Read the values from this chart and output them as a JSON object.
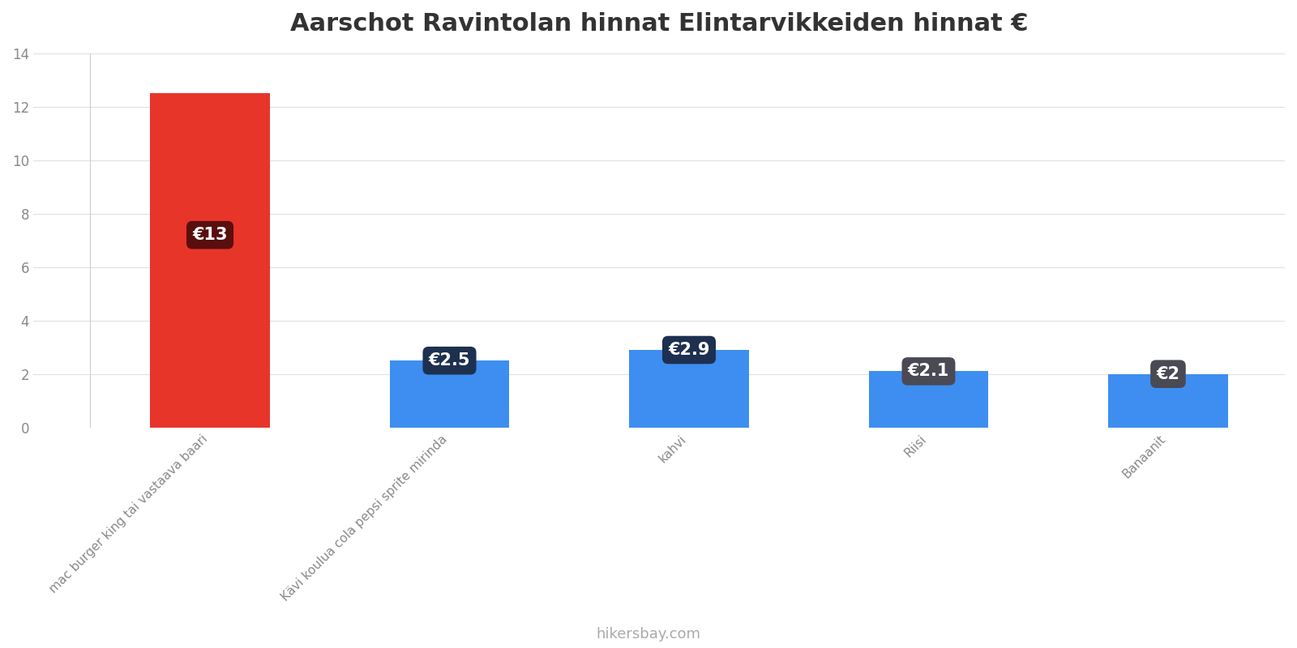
{
  "title": "Aarschot Ravintolan hinnat Elintarvikkeiden hinnat €",
  "categories": [
    "mac burger king tai vastaava baari",
    "Kävi koulua cola pepsi sprite mirinda",
    "kahvi",
    "Riisi",
    "Banaanit"
  ],
  "values": [
    12.5,
    2.5,
    2.9,
    2.1,
    2.0
  ],
  "bar_colors": [
    "#e8352a",
    "#3d8ef0",
    "#3d8ef0",
    "#3d8ef0",
    "#3d8ef0"
  ],
  "label_bg_colors": [
    "#5a0e0e",
    "#1e3050",
    "#1e3050",
    "#4a4a55",
    "#4a4a55"
  ],
  "labels": [
    "€13",
    "€2.5",
    "€2.9",
    "€2.1",
    "€2"
  ],
  "ylim": [
    0,
    14
  ],
  "yticks": [
    0,
    2,
    4,
    6,
    8,
    10,
    12,
    14
  ],
  "watermark": "hikersbay.com",
  "background_color": "#ffffff",
  "title_fontsize": 22,
  "grid_color": "#e0e0e0"
}
